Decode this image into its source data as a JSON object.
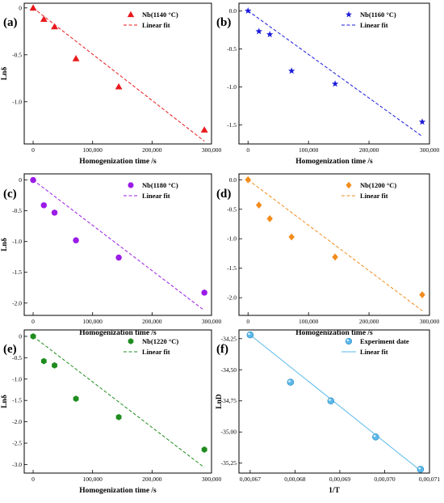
{
  "chart_data": [
    {
      "type": "scatter",
      "panel_label": "(a)",
      "xlabel": "Homogenization time /s",
      "ylabel": "Lnδ",
      "xlim": [
        -15000,
        300000
      ],
      "ylim": [
        -1.45,
        0.05
      ],
      "xticks": [
        0,
        100000,
        200000,
        300000
      ],
      "xtick_labels": [
        "0",
        "100,000",
        "200,000",
        "300,000"
      ],
      "yticks": [
        0,
        -0.5,
        -1.0
      ],
      "ytick_labels": [
        "0",
        "-0.5",
        "-1.0"
      ],
      "legend_position": "top-right",
      "marker": "triangle",
      "color": "#e8191c",
      "series": [
        {
          "name": "Nb(1140 °C)",
          "x": [
            0,
            18000,
            36000,
            72000,
            144000,
            288000
          ],
          "y": [
            0,
            -0.12,
            -0.2,
            -0.54,
            -0.84,
            -1.3
          ]
        }
      ],
      "fit": {
        "name": "Linear fit",
        "x": [
          0,
          288000
        ],
        "y": [
          0.0,
          -1.42
        ]
      }
    },
    {
      "type": "scatter",
      "panel_label": "(b)",
      "xlabel": "Homogenization time /s",
      "ylabel": "",
      "xlim": [
        -15000,
        300000
      ],
      "ylim": [
        -1.75,
        0.1
      ],
      "xticks": [
        0,
        100000,
        200000,
        300000
      ],
      "xtick_labels": [
        "0",
        "100,000",
        "200,000",
        "300,000"
      ],
      "yticks": [
        0,
        -0.5,
        -1.0,
        -1.5
      ],
      "ytick_labels": [
        "0.0",
        "-0.5",
        "-1.0",
        "-1.5"
      ],
      "legend_position": "top-right",
      "marker": "star",
      "color": "#1a1adb",
      "series": [
        {
          "name": "Nb(1160 °C)",
          "x": [
            0,
            18000,
            36000,
            72000,
            144000,
            288000
          ],
          "y": [
            0,
            -0.27,
            -0.31,
            -0.79,
            -0.96,
            -1.46
          ]
        }
      ],
      "fit": {
        "name": "Linear fit",
        "x": [
          0,
          288000
        ],
        "y": [
          0.0,
          -1.65
        ]
      }
    },
    {
      "type": "scatter",
      "panel_label": "(c)",
      "xlabel": "Homogenization time /s",
      "ylabel": "Lnδ",
      "xlim": [
        -15000,
        300000
      ],
      "ylim": [
        -2.2,
        0.1
      ],
      "xticks": [
        0,
        100000,
        200000,
        300000
      ],
      "xtick_labels": [
        "0",
        "100,000",
        "200,000",
        "300,000"
      ],
      "yticks": [
        0,
        -0.5,
        -1.0,
        -1.5,
        -2.0
      ],
      "ytick_labels": [
        "0",
        "-0.5",
        "-1.0",
        "-1.5",
        "-2.0"
      ],
      "legend_position": "top-right",
      "marker": "circle",
      "color": "#9b1ce6",
      "series": [
        {
          "name": "Nb(1180 °C)",
          "x": [
            0,
            18000,
            36000,
            72000,
            144000,
            288000
          ],
          "y": [
            0,
            -0.41,
            -0.53,
            -0.98,
            -1.26,
            -1.83
          ]
        }
      ],
      "fit": {
        "name": "Linear fit",
        "x": [
          0,
          288000
        ],
        "y": [
          0.0,
          -2.12
        ]
      }
    },
    {
      "type": "scatter",
      "panel_label": "(d)",
      "xlabel": "Homogenization time /s",
      "ylabel": "",
      "xlim": [
        -15000,
        300000
      ],
      "ylim": [
        -2.3,
        0.1
      ],
      "xticks": [
        0,
        100000,
        200000,
        300000
      ],
      "xtick_labels": [
        "0",
        "100,000",
        "200,000",
        "300,000"
      ],
      "yticks": [
        0,
        -0.5,
        -1.0,
        -1.5,
        -2.0
      ],
      "ytick_labels": [
        "0.0",
        "-0.5",
        "-1.0",
        "-1.5",
        "-2.0"
      ],
      "legend_position": "top-right",
      "marker": "diamond",
      "color": "#f28c1c",
      "series": [
        {
          "name": "Nb(1200 °C)",
          "x": [
            0,
            18000,
            36000,
            72000,
            144000,
            288000
          ],
          "y": [
            0,
            -0.43,
            -0.66,
            -0.97,
            -1.31,
            -1.95
          ]
        }
      ],
      "fit": {
        "name": "Linear fit",
        "x": [
          0,
          288000
        ],
        "y": [
          0.0,
          -2.22
        ]
      }
    },
    {
      "type": "scatter",
      "panel_label": "(e)",
      "xlabel": "Homogenization time /s",
      "ylabel": "Lnδ",
      "xlim": [
        -15000,
        300000
      ],
      "ylim": [
        -3.2,
        0.15
      ],
      "xticks": [
        0,
        100000,
        200000,
        300000
      ],
      "xtick_labels": [
        "0",
        "100,000",
        "200,000",
        "300,000"
      ],
      "yticks": [
        0,
        -0.5,
        -1.0,
        -1.5,
        -2.0,
        -2.5,
        -3.0
      ],
      "ytick_labels": [
        "0",
        "-0.5",
        "-1.0",
        "-1.5",
        "-2.0",
        "-2.5",
        "-3.0"
      ],
      "legend_position": "top-right",
      "marker": "hexagon",
      "color": "#1e8c1e",
      "series": [
        {
          "name": "Nb(1220 °C)",
          "x": [
            0,
            18000,
            36000,
            72000,
            144000,
            288000
          ],
          "y": [
            0,
            -0.58,
            -0.68,
            -1.46,
            -1.89,
            -2.65
          ]
        }
      ],
      "fit": {
        "name": "Linear fit",
        "x": [
          0,
          288000
        ],
        "y": [
          0.0,
          -3.07
        ]
      }
    },
    {
      "type": "scatter",
      "panel_label": "(f)",
      "xlabel": "1/T",
      "ylabel": "LnD",
      "xlim": [
        0.0006675,
        0.00071
      ],
      "ylim": [
        -35.33,
        -34.18
      ],
      "xticks": [
        0.00067,
        0.00068,
        0.00069,
        0.0007,
        0.00071
      ],
      "xtick_labels": [
        "0,00,067",
        "0,00,068",
        "0,00,069",
        "0,00,070",
        "0,00,071"
      ],
      "yticks": [
        -34.25,
        -34.5,
        -34.75,
        -35.0,
        -35.25
      ],
      "ytick_labels": [
        "-34,25",
        "-34,50",
        "-34,75",
        "-35,00",
        "-35,25"
      ],
      "legend_position": "top-right",
      "marker": "sphere",
      "color": "#5ab9ea",
      "series": [
        {
          "name": "Experiment date",
          "x": [
            0.00067,
            0.000679,
            0.000688,
            0.000698,
            0.000708
          ],
          "y": [
            -34.22,
            -34.6,
            -34.75,
            -35.04,
            -35.3
          ]
        }
      ],
      "fit": {
        "name": "Linear fit",
        "x": [
          0.00067,
          0.000708
        ],
        "y": [
          -34.22,
          -35.31
        ]
      }
    }
  ]
}
